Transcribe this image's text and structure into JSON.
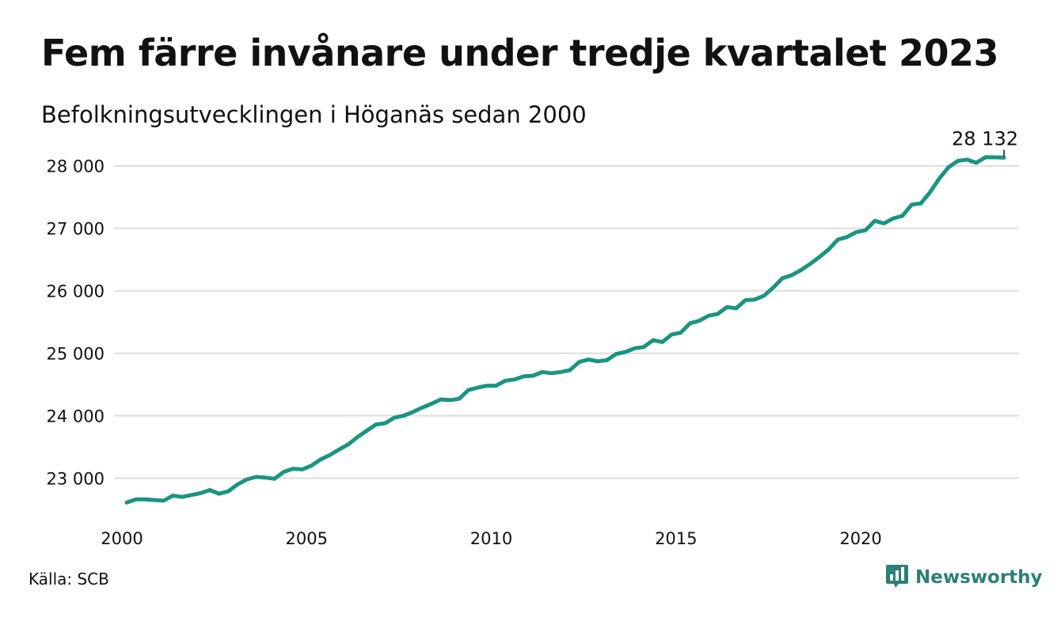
{
  "header": {
    "title": "Fem färre invånare under tredje kvartalet 2023",
    "subtitle": "Befolkningsutvecklingen i Höganäs sedan 2000"
  },
  "footer": {
    "source": "Källa: SCB",
    "brand": "Newsworthy"
  },
  "colors": {
    "line": "#1a9582",
    "grid": "#dddddd",
    "brand": "#2a8077"
  },
  "icons": {
    "brand_logo": "bar-chart-speech-bubble-icon"
  },
  "chart_data": {
    "type": "line",
    "title": "Fem färre invånare under tredje kvartalet 2023",
    "subtitle": "Befolkningsutvecklingen i Höganäs sedan 2000",
    "xlim": [
      2000,
      2024.5
    ],
    "ylim": [
      22550,
      28250
    ],
    "x_ticks": [
      2000,
      2005,
      2010,
      2015,
      2020
    ],
    "x_tick_labels": [
      "2000",
      "2005",
      "2010",
      "2015",
      "2020"
    ],
    "y_ticks": [
      23000,
      24000,
      25000,
      26000,
      27000,
      28000
    ],
    "y_tick_labels": [
      "23 000",
      "24 000",
      "25 000",
      "26 000",
      "27 000",
      "28 000"
    ],
    "grid": "horizontal",
    "end_label": "28 132",
    "series": [
      {
        "x": [
          2000.0,
          2000.25,
          2000.5,
          2000.75,
          2001.0,
          2001.25,
          2001.5,
          2001.75,
          2002.0,
          2002.25,
          2002.5,
          2002.75,
          2003.0,
          2003.25,
          2003.5,
          2003.75,
          2004.0,
          2004.25,
          2004.5,
          2004.75,
          2005.0,
          2005.25,
          2005.5,
          2005.75,
          2006.0,
          2006.25,
          2006.5,
          2006.75,
          2007.0,
          2007.25,
          2007.5,
          2007.75,
          2008.0,
          2008.25,
          2008.5,
          2008.75,
          2009.0,
          2009.25,
          2009.5,
          2009.75,
          2010.0,
          2010.25,
          2010.5,
          2010.75,
          2011.0,
          2011.25,
          2011.5,
          2011.75,
          2012.0,
          2012.25,
          2012.5,
          2012.75,
          2013.0,
          2013.25,
          2013.5,
          2013.75,
          2014.0,
          2014.25,
          2014.5,
          2014.75,
          2015.0,
          2015.25,
          2015.5,
          2015.75,
          2016.0,
          2016.25,
          2016.5,
          2016.75,
          2017.0,
          2017.25,
          2017.5,
          2017.75,
          2018.0,
          2018.25,
          2018.5,
          2018.75,
          2019.0,
          2019.25,
          2019.5,
          2019.75,
          2020.0,
          2020.25,
          2020.5,
          2020.75,
          2021.0,
          2021.25,
          2021.5,
          2021.75,
          2022.0,
          2022.25,
          2022.5,
          2022.75,
          2023.0,
          2023.25,
          2023.5,
          2023.75
        ],
        "values": [
          22610,
          22660,
          22660,
          22650,
          22640,
          22720,
          22700,
          22730,
          22760,
          22810,
          22750,
          22790,
          22900,
          22980,
          23020,
          23010,
          22990,
          23100,
          23150,
          23140,
          23200,
          23300,
          23370,
          23460,
          23540,
          23660,
          23760,
          23860,
          23880,
          23970,
          24000,
          24060,
          24130,
          24190,
          24260,
          24250,
          24270,
          24410,
          24450,
          24480,
          24480,
          24560,
          24580,
          24630,
          24640,
          24700,
          24680,
          24700,
          24730,
          24860,
          24900,
          24870,
          24890,
          24990,
          25020,
          25080,
          25100,
          25210,
          25180,
          25300,
          25330,
          25480,
          25520,
          25600,
          25630,
          25740,
          25720,
          25850,
          25860,
          25920,
          26050,
          26200,
          26250,
          26330,
          26430,
          26540,
          26660,
          26820,
          26860,
          26940,
          26970,
          27120,
          27080,
          27160,
          27200,
          27380,
          27400,
          27580,
          27800,
          27980,
          28080,
          28100,
          28050,
          28140,
          28137,
          28132
        ]
      }
    ]
  }
}
